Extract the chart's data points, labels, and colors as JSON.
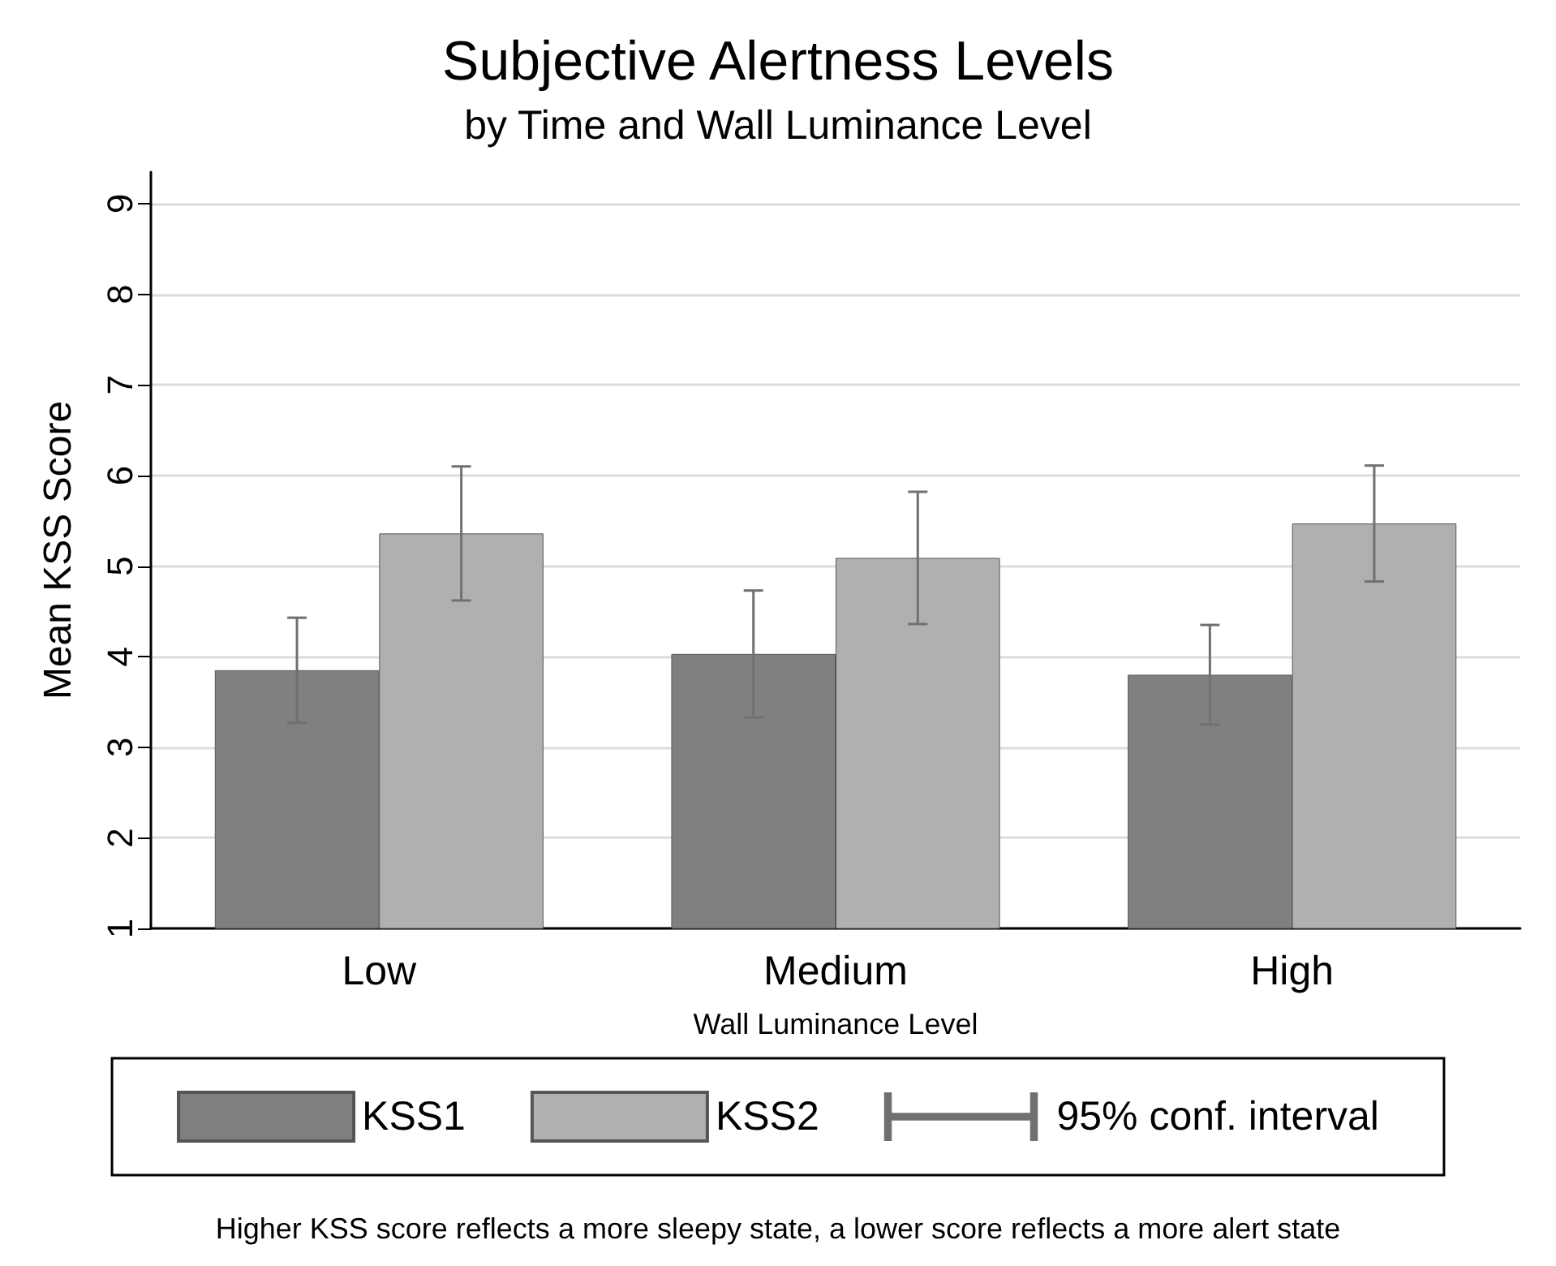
{
  "chart_data": {
    "type": "bar",
    "title": "Subjective Alertness Levels",
    "subtitle": "by Time and Wall Luminance Level",
    "xlabel": "Wall Luminance Level",
    "ylabel": "Mean KSS Score",
    "categories": [
      "Low",
      "Medium",
      "High"
    ],
    "series": [
      {
        "name": "KSS1",
        "color": "#808080",
        "values": [
          3.85,
          4.03,
          3.8
        ],
        "errors": [
          0.58,
          0.7,
          0.55
        ]
      },
      {
        "name": "KSS2",
        "color": "#b0b0b0",
        "values": [
          5.36,
          5.09,
          5.47
        ],
        "errors": [
          0.74,
          0.73,
          0.64
        ]
      }
    ],
    "ylim": [
      1,
      9.35
    ],
    "yticks": [
      1,
      2,
      3,
      4,
      5,
      6,
      7,
      8,
      9
    ],
    "grid": "y",
    "legend": "bottom",
    "annotations": [
      "95% conf. interval",
      "Higher KSS score reflects a more sleepy state, a lower score reflects a more alert state"
    ]
  }
}
